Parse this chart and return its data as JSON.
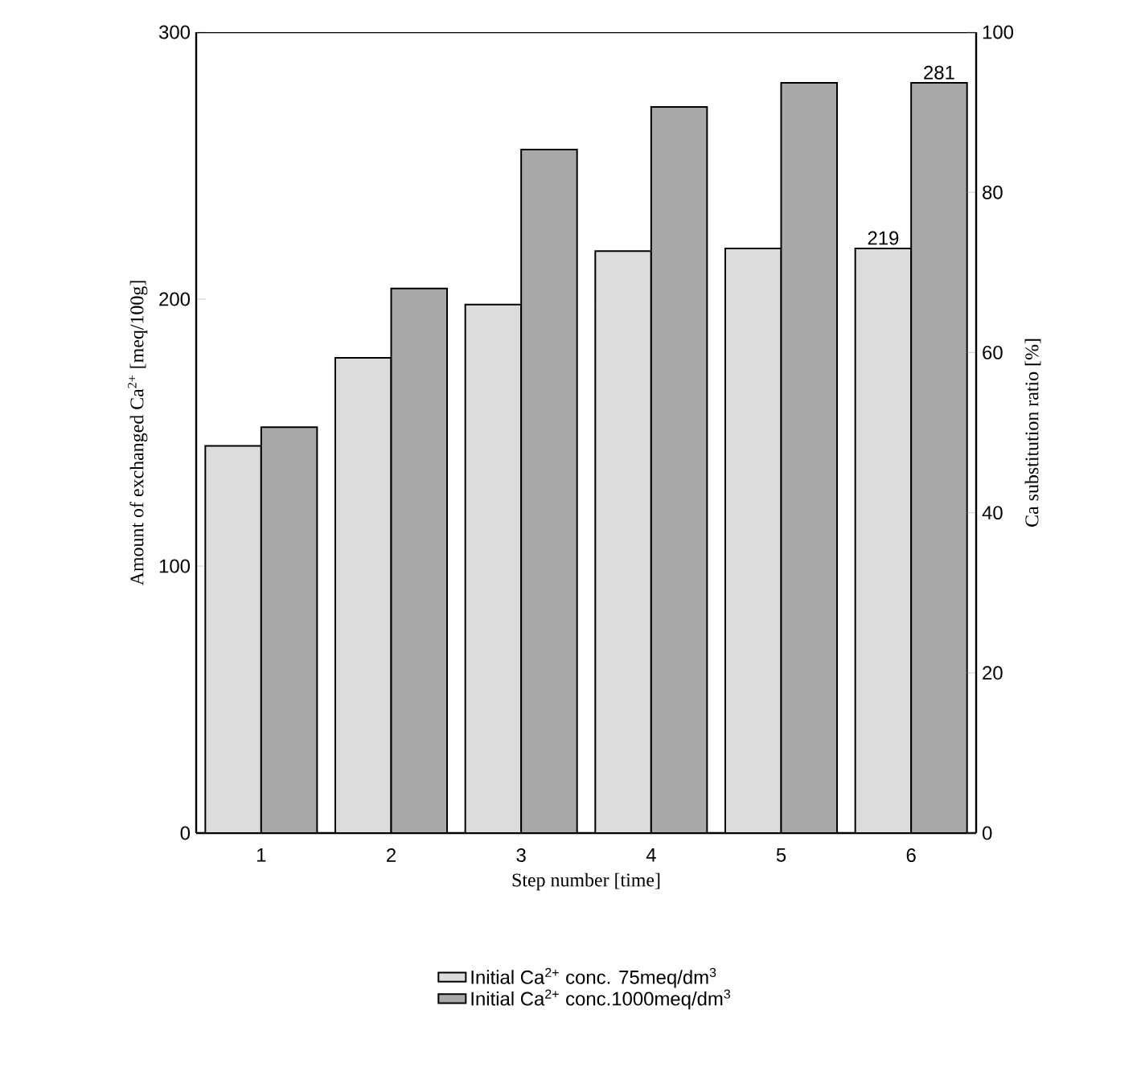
{
  "chart_data": {
    "type": "bar",
    "categories": [
      "1",
      "2",
      "3",
      "4",
      "5",
      "6"
    ],
    "series": [
      {
        "name": "Initial Ca$^{2+}$ conc. 75meq/dm$^{3}$",
        "color": "#dcdcdc",
        "values": [
          145,
          178,
          198,
          218,
          219,
          219
        ],
        "value_labels": [
          null,
          null,
          null,
          null,
          null,
          "219"
        ]
      },
      {
        "name": "Initial Ca$^{2+}$ conc.1000meq/dm$^{3}$",
        "color": "#a9a9a9",
        "values": [
          152,
          204,
          256,
          272,
          281,
          281
        ],
        "value_labels": [
          null,
          null,
          null,
          null,
          null,
          "281"
        ]
      }
    ],
    "xlabel": "Step number [time]",
    "ylabel": "Amount of exchanged Ca$^{2+}$ [meq/100g]",
    "y2label": "Ca substitution ratio [%]",
    "ylim": [
      0,
      300
    ],
    "yticks": [
      0,
      100,
      200,
      300
    ],
    "y2lim": [
      0,
      100
    ],
    "y2ticks": [
      0,
      20,
      40,
      60,
      80,
      100
    ],
    "legend": "bottom"
  }
}
